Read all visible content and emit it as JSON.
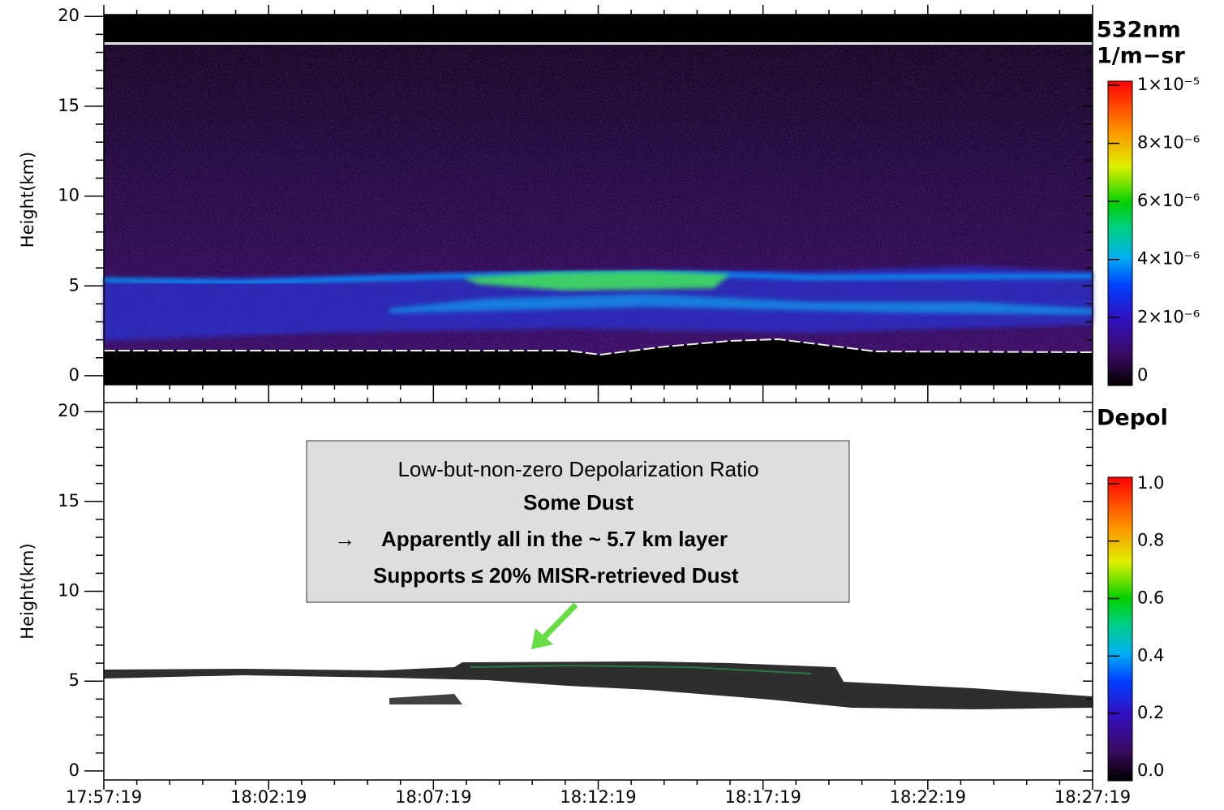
{
  "chart_data": [
    {
      "type": "curtain",
      "ylabel": "Height(km)",
      "ylim": [
        -0.5,
        20.1
      ],
      "yticks": [
        0,
        5,
        10,
        15,
        20
      ],
      "colorbar": {
        "labels": [
          "532nm",
          "1/m−sr"
        ],
        "clim": [
          -3.4e-07,
          1.014e-05
        ],
        "ticks": [
          {
            "value": 0,
            "label": "0"
          },
          {
            "value": 2e-06,
            "label": "2×10⁻⁶"
          },
          {
            "value": 4e-06,
            "label": "4×10⁻⁶"
          },
          {
            "value": 6e-06,
            "label": "6×10⁻⁶"
          },
          {
            "value": 8e-06,
            "label": "8×10⁻⁶"
          },
          {
            "value": 1e-05,
            "label": "1×10⁻⁵"
          }
        ]
      }
    },
    {
      "type": "curtain",
      "ylabel": "Height(km)",
      "ylim": [
        -0.5,
        20.5
      ],
      "yticks": [
        0,
        5,
        10,
        15,
        20
      ],
      "xticks": [
        "17:57:19",
        "18:02:19",
        "18:07:19",
        "18:12:19",
        "18:17:19",
        "18:22:19",
        "18:27:19"
      ],
      "colorbar": {
        "labels": [
          "Depol"
        ],
        "clim": [
          -0.034,
          1.022
        ],
        "ticks": [
          {
            "value": 0,
            "label": "0.0"
          },
          0.2,
          0.4,
          0.6,
          0.8,
          {
            "value": 1,
            "label": "1.0"
          }
        ]
      }
    }
  ],
  "annotation": {
    "heading": "Low-but-non-zero Depolarization Ratio",
    "subheading": "Some Dust",
    "arrow": "→",
    "lines": [
      "Apparently all in the ~ 5.7 km layer",
      "Supports ≤ 20% MISR-retrieved Dust"
    ]
  }
}
